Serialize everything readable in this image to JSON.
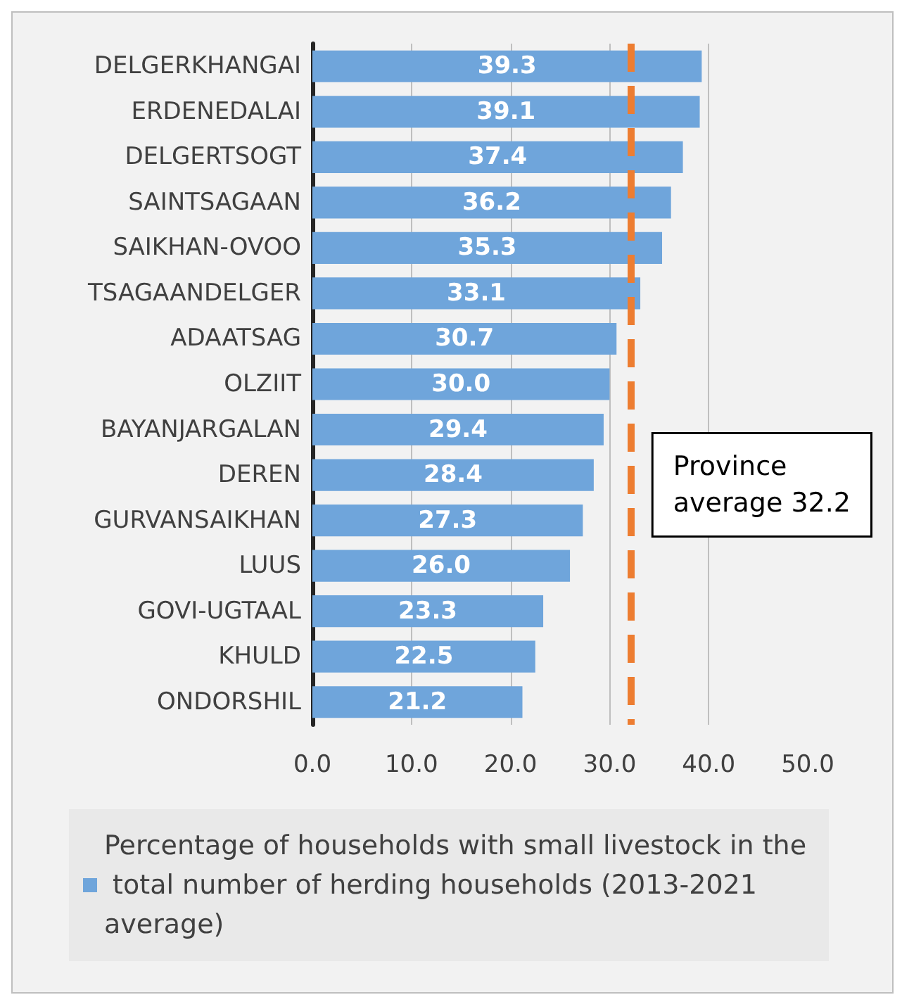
{
  "chart_data": {
    "type": "bar",
    "orientation": "horizontal",
    "categories": [
      "DELGERKHANGAI",
      "ERDENEDALAI",
      "DELGERTSOGT",
      "SAINTSAGAAN",
      "SAIKHAN-OVOO",
      "TSAGAANDELGER",
      "ADAATSAG",
      "OLZIIT",
      "BAYANJARGALAN",
      "DEREN",
      "GURVANSAIKHAN",
      "LUUS",
      "GOVI-UGTAAL",
      "KHULD",
      "ONDORSHIL"
    ],
    "series": [
      {
        "name": "Percentage of households with small livestock in the total number of herding households (2013-2021 average)",
        "color": "#6fa5db",
        "values": [
          39.3,
          39.1,
          37.4,
          36.2,
          35.3,
          33.1,
          30.7,
          30.0,
          29.4,
          28.4,
          27.3,
          26.0,
          23.3,
          22.5,
          21.2
        ],
        "value_labels": [
          "39.3",
          "39.1",
          "37.4",
          "36.2",
          "35.3",
          "33.1",
          "30.7",
          "30.0",
          "29.4",
          "28.4",
          "27.3",
          "26.0",
          "23.3",
          "22.5",
          "21.2"
        ]
      }
    ],
    "xlim": [
      0,
      50
    ],
    "xticks": [
      {
        "value": 0,
        "label": "0.0"
      },
      {
        "value": 10,
        "label": "10.0"
      },
      {
        "value": 20,
        "label": "20.0"
      },
      {
        "value": 30,
        "label": "30.0"
      },
      {
        "value": 40,
        "label": "40.0"
      },
      {
        "value": 50,
        "label": "50.0"
      }
    ],
    "ref_lines": [
      {
        "axis": "x",
        "value": 32.2,
        "label": "Province\naverage 32.2",
        "color": "#ed7d31",
        "line_style": "dashed"
      }
    ],
    "grid": "x",
    "legend": "bottom"
  }
}
